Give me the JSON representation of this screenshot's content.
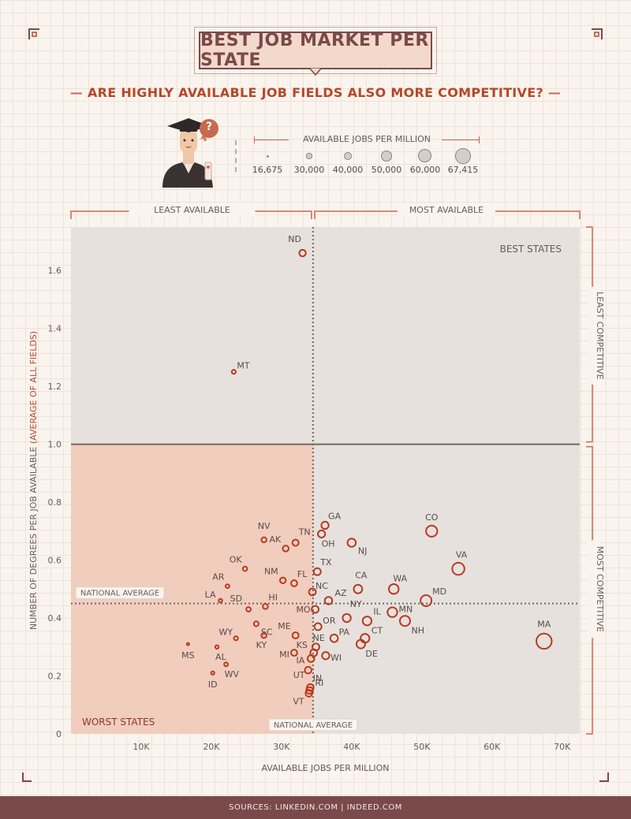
{
  "header": {
    "title": "BEST JOB MARKET PER STATE",
    "subtitle": "ARE HIGHLY AVAILABLE JOB FIELDS ALSO MORE COMPETITIVE?",
    "question_mark": "?"
  },
  "size_legend": {
    "title": "AVAILABLE JOBS PER MILLION",
    "items": [
      {
        "label": "16,675",
        "value": 16675
      },
      {
        "label": "30,000",
        "value": 30000
      },
      {
        "label": "40,000",
        "value": 40000
      },
      {
        "label": "50,000",
        "value": 50000
      },
      {
        "label": "60,000",
        "value": 60000
      },
      {
        "label": "67,415",
        "value": 67415
      }
    ]
  },
  "quadrant_labels": {
    "least_available": "LEAST AVAILABLE",
    "most_available": "MOST AVAILABLE",
    "least_competitive": "LEAST COMPETITIVE",
    "most_competitive": "MOST COMPETITIVE",
    "best_states": "BEST STATES",
    "worst_states": "WORST STATES",
    "national_average_y": "NATIONAL AVERAGE",
    "national_average_x": "NATIONAL AVERAGE"
  },
  "footer": {
    "text": "SOURCES:  LINKEDIN.COM  |  INDEED.COM"
  },
  "colors": {
    "accent": "#b5482a",
    "title_border": "#7a4a4a",
    "plot_bg": "#e6e1dd",
    "worst_bg": "#f1cdbd",
    "point_stroke": "#b83a20",
    "footer_bg": "#7a4a4a"
  },
  "chart_data": {
    "type": "scatter",
    "title": "BEST JOB MARKET PER STATE",
    "xlabel": "AVAILABLE JOBS PER MILLION",
    "ylabel": "NUMBER OF DEGREES PER JOB AVAILABLE",
    "ylabel_suffix": "(AVERAGE OF ALL FIELDS)",
    "xlim": [
      0,
      72500
    ],
    "ylim": [
      0,
      1.75
    ],
    "xticks": [
      10000,
      20000,
      30000,
      40000,
      50000,
      60000,
      70000
    ],
    "xtick_labels": [
      "10K",
      "20K",
      "30K",
      "40K",
      "50K",
      "60K",
      "70K"
    ],
    "yticks": [
      0,
      0.2,
      0.4,
      0.6,
      0.8,
      1.0,
      1.2,
      1.4,
      1.6
    ],
    "ytick_labels": [
      "0",
      "0.2",
      "0.4",
      "0.6",
      "0.8",
      "1.0",
      "1.2",
      "1.4",
      "1.6"
    ],
    "national_average_x": 34500,
    "national_average_y": 0.45,
    "threshold_y": 1.0,
    "grid": false,
    "points": [
      {
        "state": "ND",
        "x": 33000,
        "y": 1.66
      },
      {
        "state": "MT",
        "x": 23200,
        "y": 1.25
      },
      {
        "state": "GA",
        "x": 36200,
        "y": 0.72
      },
      {
        "state": "CO",
        "x": 51400,
        "y": 0.7
      },
      {
        "state": "OH",
        "x": 35700,
        "y": 0.69
      },
      {
        "state": "NV",
        "x": 27500,
        "y": 0.67
      },
      {
        "state": "TN",
        "x": 32000,
        "y": 0.66
      },
      {
        "state": "NJ",
        "x": 40000,
        "y": 0.66
      },
      {
        "state": "AK",
        "x": 30600,
        "y": 0.64
      },
      {
        "state": "OK",
        "x": 24800,
        "y": 0.57
      },
      {
        "state": "VA",
        "x": 55200,
        "y": 0.57
      },
      {
        "state": "TX",
        "x": 35100,
        "y": 0.56
      },
      {
        "state": "NM",
        "x": 30200,
        "y": 0.53
      },
      {
        "state": "FL",
        "x": 31800,
        "y": 0.52
      },
      {
        "state": "AR",
        "x": 22300,
        "y": 0.51
      },
      {
        "state": "CA",
        "x": 40900,
        "y": 0.5
      },
      {
        "state": "WA",
        "x": 46000,
        "y": 0.5
      },
      {
        "state": "NC",
        "x": 34400,
        "y": 0.49
      },
      {
        "state": "LA",
        "x": 21300,
        "y": 0.46
      },
      {
        "state": "MD",
        "x": 50600,
        "y": 0.46
      },
      {
        "state": "AZ",
        "x": 36700,
        "y": 0.46
      },
      {
        "state": "SD",
        "x": 25300,
        "y": 0.43
      },
      {
        "state": "HI",
        "x": 27700,
        "y": 0.44
      },
      {
        "state": "MO",
        "x": 34800,
        "y": 0.43
      },
      {
        "state": "NY",
        "x": 39300,
        "y": 0.4
      },
      {
        "state": "MN",
        "x": 45800,
        "y": 0.42
      },
      {
        "state": "IL",
        "x": 42200,
        "y": 0.39
      },
      {
        "state": "NH",
        "x": 47600,
        "y": 0.39
      },
      {
        "state": "OR",
        "x": 35200,
        "y": 0.37
      },
      {
        "state": "SC",
        "x": 26400,
        "y": 0.38
      },
      {
        "state": "ME",
        "x": 32000,
        "y": 0.34
      },
      {
        "state": "KY",
        "x": 27500,
        "y": 0.34
      },
      {
        "state": "PA",
        "x": 37500,
        "y": 0.33
      },
      {
        "state": "CT",
        "x": 41900,
        "y": 0.33
      },
      {
        "state": "WY",
        "x": 23500,
        "y": 0.33
      },
      {
        "state": "MA",
        "x": 67415,
        "y": 0.32
      },
      {
        "state": "DE",
        "x": 41300,
        "y": 0.31
      },
      {
        "state": "MS",
        "x": 16675,
        "y": 0.31
      },
      {
        "state": "AL",
        "x": 20800,
        "y": 0.3
      },
      {
        "state": "NE",
        "x": 34900,
        "y": 0.3
      },
      {
        "state": "KS",
        "x": 34600,
        "y": 0.28
      },
      {
        "state": "MI",
        "x": 31800,
        "y": 0.28
      },
      {
        "state": "WI",
        "x": 36300,
        "y": 0.27
      },
      {
        "state": "IA",
        "x": 34200,
        "y": 0.26
      },
      {
        "state": "WV",
        "x": 22100,
        "y": 0.24
      },
      {
        "state": "IN",
        "x": 33800,
        "y": 0.22
      },
      {
        "state": "ID",
        "x": 20200,
        "y": 0.21
      },
      {
        "state": "UT",
        "x": 34000,
        "y": 0.15
      },
      {
        "state": "RI",
        "x": 34100,
        "y": 0.16
      },
      {
        "state": "VT",
        "x": 33900,
        "y": 0.14
      }
    ]
  }
}
